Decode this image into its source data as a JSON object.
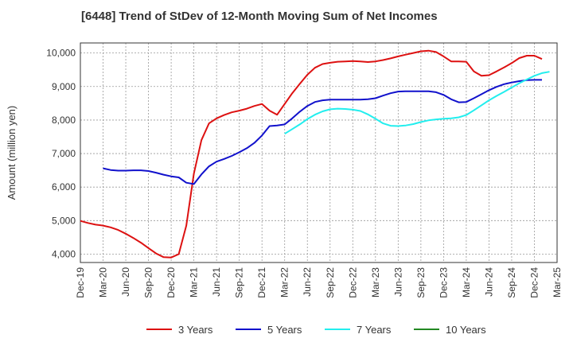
{
  "chart_data": {
    "type": "line",
    "title": "[6448]  Trend of StDev of 12-Month Moving Sum of Net Incomes",
    "xlabel": "",
    "ylabel": "Amount (million yen)",
    "ylim": [
      3750,
      10300
    ],
    "y_ticks": [
      4000,
      5000,
      6000,
      7000,
      8000,
      9000,
      10000
    ],
    "y_tick_labels": [
      "4,000",
      "5,000",
      "6,000",
      "7,000",
      "8,000",
      "9,000",
      "10,000"
    ],
    "x_tick_labels": [
      "Dec-19",
      "Mar-20",
      "Jun-20",
      "Sep-20",
      "Dec-20",
      "Mar-21",
      "Jun-21",
      "Sep-21",
      "Dec-21",
      "Mar-22",
      "Jun-22",
      "Sep-22",
      "Dec-22",
      "Mar-23",
      "Jun-23",
      "Sep-23",
      "Dec-23",
      "Mar-24",
      "Jun-24",
      "Sep-24",
      "Dec-24",
      "Mar-25"
    ],
    "x_months": [
      "2019-12",
      "2020-01",
      "2020-02",
      "2020-03",
      "2020-04",
      "2020-05",
      "2020-06",
      "2020-07",
      "2020-08",
      "2020-09",
      "2020-10",
      "2020-11",
      "2020-12",
      "2021-01",
      "2021-02",
      "2021-03",
      "2021-04",
      "2021-05",
      "2021-06",
      "2021-07",
      "2021-08",
      "2021-09",
      "2021-10",
      "2021-11",
      "2021-12",
      "2022-01",
      "2022-02",
      "2022-03",
      "2022-04",
      "2022-05",
      "2022-06",
      "2022-07",
      "2022-08",
      "2022-09",
      "2022-10",
      "2022-11",
      "2022-12",
      "2023-01",
      "2023-02",
      "2023-03",
      "2023-04",
      "2023-05",
      "2023-06",
      "2023-07",
      "2023-08",
      "2023-09",
      "2023-10",
      "2023-11",
      "2023-12",
      "2024-01",
      "2024-02",
      "2024-03",
      "2024-04",
      "2024-05",
      "2024-06",
      "2024-07",
      "2024-08",
      "2024-09",
      "2024-10",
      "2024-11",
      "2024-12",
      "2025-01",
      "2025-02",
      "2025-03"
    ],
    "grid": true,
    "legend_position": "bottom",
    "series": [
      {
        "name": "3 Years",
        "color": "#dd1111",
        "start": "2019-12",
        "values": [
          4990,
          4930,
          4880,
          4850,
          4800,
          4720,
          4610,
          4480,
          4340,
          4180,
          4020,
          3910,
          3900,
          4000,
          4850,
          6400,
          7400,
          7900,
          8050,
          8150,
          8230,
          8280,
          8340,
          8420,
          8480,
          8280,
          8160,
          8480,
          8800,
          9080,
          9350,
          9560,
          9670,
          9710,
          9740,
          9750,
          9760,
          9750,
          9730,
          9750,
          9790,
          9840,
          9900,
          9950,
          10000,
          10050,
          10070,
          10030,
          9900,
          9750,
          9750,
          9740,
          9450,
          9320,
          9340,
          9450,
          9570,
          9700,
          9850,
          9920,
          9920,
          9820
        ]
      },
      {
        "name": "5 Years",
        "color": "#1111cc",
        "start": "2020-03",
        "values": [
          6560,
          6510,
          6490,
          6490,
          6500,
          6500,
          6480,
          6430,
          6370,
          6320,
          6290,
          6130,
          6090,
          6380,
          6620,
          6760,
          6840,
          6930,
          7040,
          7160,
          7320,
          7540,
          7820,
          7840,
          7870,
          8050,
          8250,
          8420,
          8540,
          8590,
          8610,
          8610,
          8610,
          8610,
          8610,
          8620,
          8650,
          8730,
          8800,
          8850,
          8860,
          8860,
          8860,
          8860,
          8830,
          8750,
          8620,
          8530,
          8540,
          8650,
          8770,
          8890,
          8990,
          9070,
          9120,
          9160,
          9190,
          9200,
          9200
        ]
      },
      {
        "name": "7 Years",
        "color": "#22eeee",
        "start": "2022-03",
        "values": [
          7590,
          7730,
          7870,
          8030,
          8160,
          8260,
          8320,
          8340,
          8330,
          8310,
          8270,
          8170,
          8040,
          7900,
          7830,
          7820,
          7840,
          7880,
          7940,
          7990,
          8020,
          8040,
          8050,
          8080,
          8150,
          8290,
          8440,
          8590,
          8720,
          8840,
          8970,
          9100,
          9210,
          9320,
          9400,
          9440
        ]
      },
      {
        "name": "10 Years",
        "color": "#228822",
        "start": "2025-01",
        "values": []
      }
    ]
  }
}
